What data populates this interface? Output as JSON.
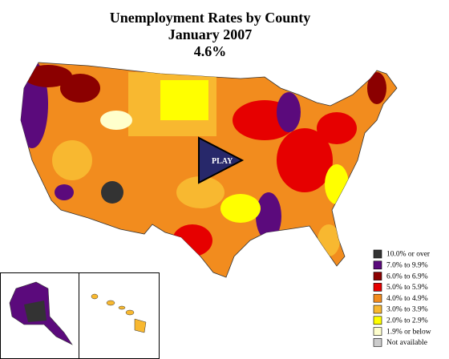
{
  "title": {
    "lines": [
      "Unemployment Rates by County",
      "January 2007",
      "4.6%"
    ]
  },
  "play_button": {
    "label": "PLAY"
  },
  "legend": {
    "items": [
      {
        "label": "10.0% or over",
        "color": "#333333"
      },
      {
        "label": "7.0% to 9.9%",
        "color": "#5b0a7c"
      },
      {
        "label": "6.0% to 6.9%",
        "color": "#8b0000"
      },
      {
        "label": "5.0% to 5.9%",
        "color": "#e60000"
      },
      {
        "label": "4.0% to 4.9%",
        "color": "#f28c1e"
      },
      {
        "label": "3.0% to 3.9%",
        "color": "#f8b830"
      },
      {
        "label": "2.0% to 2.9%",
        "color": "#ffff00"
      },
      {
        "label": "1.9% or below",
        "color": "#ffffcc"
      },
      {
        "label": "Not available",
        "color": "#cccccc"
      }
    ]
  }
}
